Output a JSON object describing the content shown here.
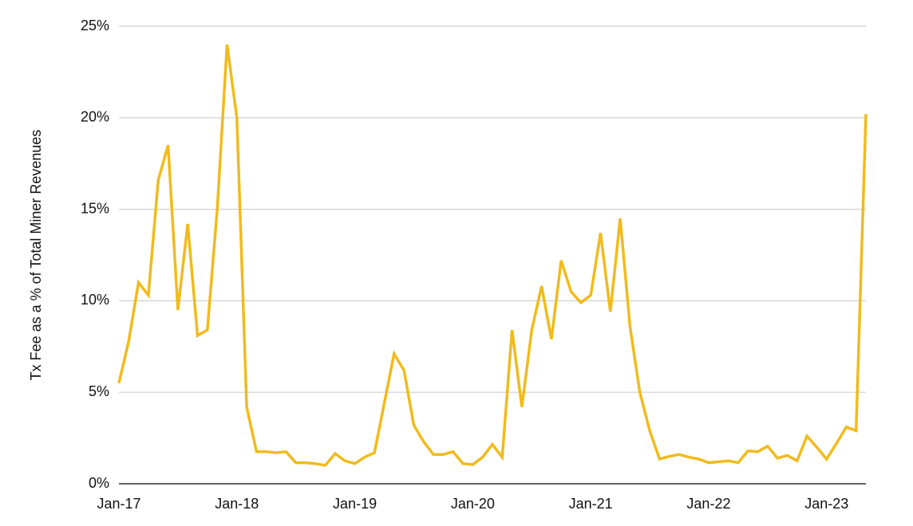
{
  "chart_data": {
    "type": "line",
    "y_label": "Tx Fee as a % of Total Miner Revenues",
    "categories": [
      "Jan-17",
      null,
      null,
      null,
      null,
      null,
      null,
      null,
      null,
      null,
      null,
      null,
      "Jan-18",
      null,
      null,
      null,
      null,
      null,
      null,
      null,
      null,
      null,
      null,
      null,
      "Jan-19",
      null,
      null,
      null,
      null,
      null,
      null,
      null,
      null,
      null,
      null,
      null,
      "Jan-20",
      null,
      null,
      null,
      null,
      null,
      null,
      null,
      null,
      null,
      null,
      null,
      "Jan-21",
      null,
      null,
      null,
      null,
      null,
      null,
      null,
      null,
      null,
      null,
      null,
      "Jan-22",
      null,
      null,
      null,
      null,
      null,
      null,
      null,
      null,
      null,
      null,
      null,
      "Jan-23",
      null,
      null,
      null,
      null
    ],
    "series": [
      {
        "color": "#f0bb1c",
        "values": [
          5.5,
          7.8,
          11.0,
          10.3,
          16.6,
          18.5,
          9.5,
          14.2,
          8.1,
          8.4,
          15.0,
          24.0,
          20.0,
          4.2,
          1.75,
          1.75,
          1.7,
          1.75,
          1.15,
          1.15,
          1.1,
          1.0,
          1.65,
          1.25,
          1.1,
          1.45,
          1.7,
          4.4,
          7.1,
          6.2,
          3.2,
          2.3,
          1.6,
          1.6,
          1.75,
          1.1,
          1.05,
          1.45,
          2.15,
          1.45,
          8.4,
          4.2,
          8.4,
          10.8,
          7.9,
          12.2,
          10.5,
          9.9,
          10.3,
          13.7,
          9.4,
          14.5,
          8.6,
          5.0,
          2.9,
          1.35,
          1.5,
          1.6,
          1.45,
          1.35,
          1.15,
          1.2,
          1.25,
          1.15,
          1.8,
          1.75,
          2.05,
          1.4,
          1.55,
          1.25,
          2.6,
          2.0,
          1.35,
          2.2,
          3.1,
          2.9,
          20.2
        ]
      }
    ],
    "ylim": [
      0,
      25
    ],
    "yticks": [
      {
        "value": 0,
        "label": "0%"
      },
      {
        "value": 5,
        "label": "5%"
      },
      {
        "value": 10,
        "label": "10%"
      },
      {
        "value": 15,
        "label": "15%"
      },
      {
        "value": 20,
        "label": "20%"
      },
      {
        "value": 25,
        "label": "25%"
      }
    ],
    "grid": true
  }
}
